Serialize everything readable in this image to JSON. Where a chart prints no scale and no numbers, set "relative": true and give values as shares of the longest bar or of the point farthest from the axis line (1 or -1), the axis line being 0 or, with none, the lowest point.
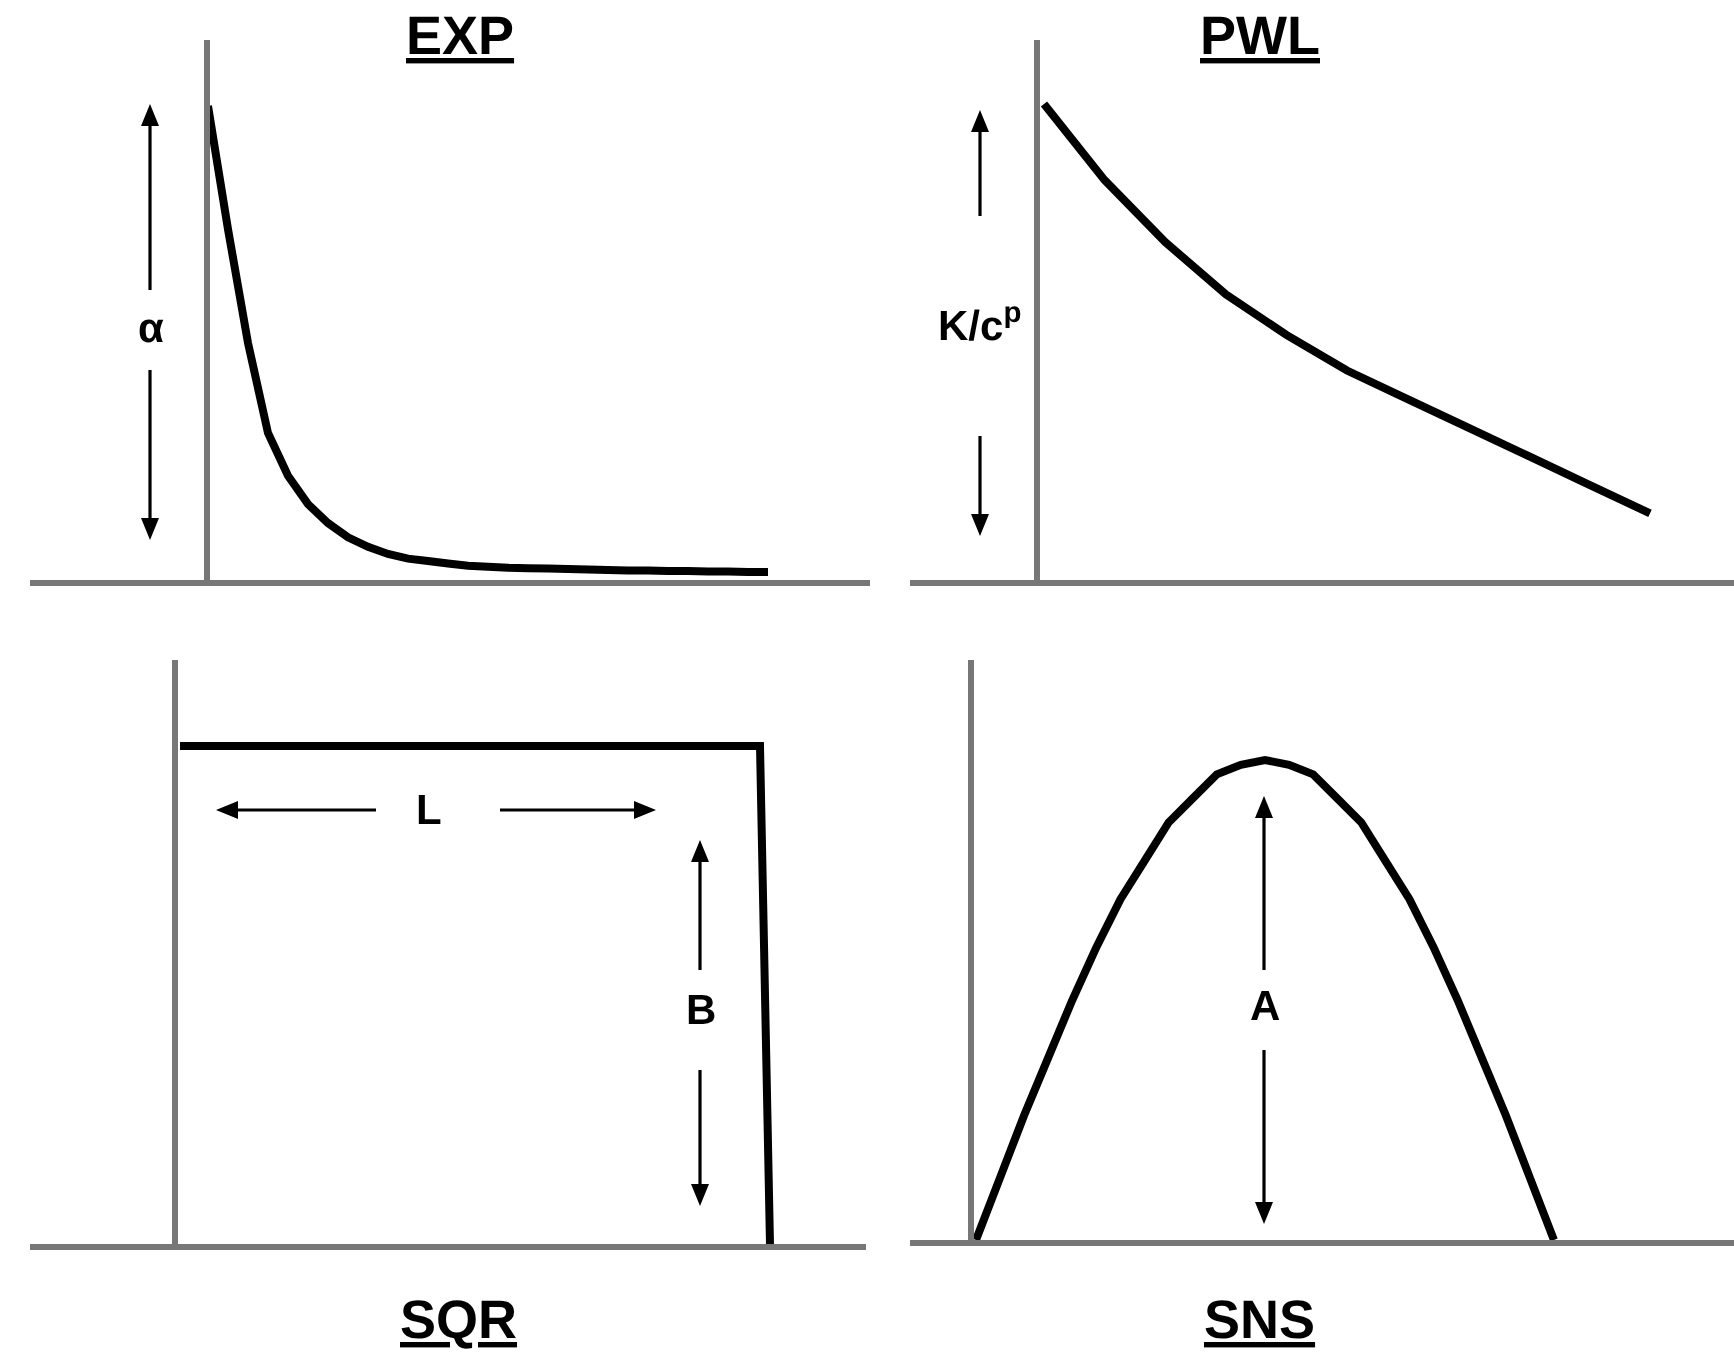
{
  "chart_data": [
    {
      "type": "line",
      "title": "EXP",
      "relative": true,
      "annotations": [
        "α"
      ],
      "categories": [
        null,
        null,
        null,
        null,
        null,
        null,
        null,
        null,
        null,
        null,
        null,
        null,
        null,
        null,
        null,
        null,
        null,
        null,
        null,
        null,
        null,
        null,
        null,
        null,
        null,
        null,
        null,
        null,
        null
      ],
      "series": [
        {
          "color": "#000000",
          "values": [
            1,
            0.74,
            0.5,
            0.31,
            0.22,
            0.16,
            0.12,
            0.09,
            0.07,
            0.055,
            0.045,
            0.04,
            0.035,
            0.03,
            0.028,
            0.026,
            0.025,
            0.024,
            0.023,
            0.022,
            0.021,
            0.02,
            0.02,
            0.019,
            0.019,
            0.018,
            0.018,
            0.017,
            0.017
          ]
        }
      ]
    },
    {
      "type": "line",
      "title": "PWL",
      "relative": true,
      "annotations": [
        "K/c$^{p}$"
      ],
      "categories": [
        null,
        null,
        null,
        null,
        null,
        null,
        null,
        null,
        null,
        null,
        null
      ],
      "series": [
        {
          "color": "#000000",
          "values": [
            1,
            0.84,
            0.71,
            0.6,
            0.515,
            0.44,
            0.38,
            0.32,
            0.26,
            0.2,
            0.14
          ]
        }
      ]
    },
    {
      "type": "line",
      "title": "SQR",
      "relative": true,
      "annotations": [
        "L",
        "B"
      ],
      "categories": [
        null,
        null,
        null,
        null,
        null,
        null,
        null,
        null,
        null,
        null,
        null,
        null,
        null,
        null,
        null,
        null,
        null,
        null,
        null,
        null,
        null,
        null,
        null,
        null,
        null,
        null,
        null,
        null,
        null,
        null,
        null,
        null,
        null,
        null,
        null,
        null,
        null,
        null,
        null,
        null,
        null,
        null,
        null,
        null,
        null,
        null,
        null,
        null,
        null,
        null,
        null,
        null,
        null,
        null,
        null,
        null,
        null,
        null,
        null,
        null
      ],
      "series": [
        {
          "color": "#000000",
          "values": [
            1,
            1,
            1,
            1,
            1,
            1,
            1,
            1,
            1,
            1,
            1,
            1,
            1,
            1,
            1,
            1,
            1,
            1,
            1,
            1,
            1,
            1,
            1,
            1,
            1,
            1,
            1,
            1,
            1,
            1,
            1,
            1,
            1,
            1,
            1,
            1,
            1,
            1,
            1,
            1,
            1,
            1,
            1,
            1,
            1,
            1,
            1,
            1,
            1,
            1,
            1,
            1,
            1,
            1,
            1,
            1,
            1,
            1,
            1,
            0
          ]
        }
      ]
    },
    {
      "type": "line",
      "title": "SNS",
      "relative": true,
      "annotations": [
        "A"
      ],
      "categories": [
        null,
        null,
        null,
        null,
        null,
        null,
        null,
        null,
        null,
        null,
        null,
        null,
        null,
        null,
        null,
        null,
        null,
        null,
        null,
        null,
        null,
        null,
        null,
        null,
        null
      ],
      "series": [
        {
          "color": "#000000",
          "values": [
            0,
            0.13,
            0.26,
            0.38,
            0.5,
            0.61,
            0.71,
            0.79,
            0.87,
            0.92,
            0.97,
            0.99,
            1,
            0.99,
            0.97,
            0.92,
            0.87,
            0.79,
            0.71,
            0.61,
            0.5,
            0.38,
            0.26,
            0.13,
            0
          ]
        }
      ]
    }
  ]
}
